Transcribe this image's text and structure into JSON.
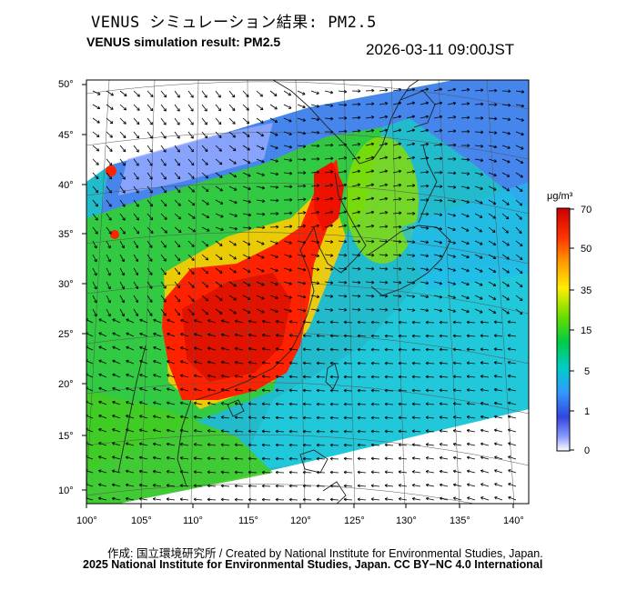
{
  "header": {
    "title_jp": "VENUS シミュレーション結果: PM2.5",
    "title_en": "VENUS simulation result: PM2.5",
    "timestamp": "2026-03-11 09:00JST"
  },
  "map": {
    "lon_ticks": [
      "100°",
      "105°",
      "110°",
      "115°",
      "120°",
      "125°",
      "130°",
      "135°",
      "140°"
    ],
    "lat_ticks": [
      "50°",
      "45°",
      "40°",
      "35°",
      "30°",
      "25°",
      "20°",
      "15°",
      "10°"
    ],
    "lon_range": [
      100,
      142
    ],
    "lat_range": [
      9,
      50
    ],
    "field": "PM2.5 concentration with wind vectors"
  },
  "colorbar": {
    "unit": "μg/m³",
    "labels": [
      "70",
      "50",
      "35",
      "15",
      "5",
      "1",
      "0"
    ],
    "colors": [
      "#cc0000",
      "#ff3300",
      "#ff9900",
      "#ffee00",
      "#66dd00",
      "#00cc44",
      "#00cccc",
      "#3399ff",
      "#3344dd",
      "#8899ff",
      "#ffffff"
    ]
  },
  "footer": {
    "credit_line": "作成: 国立環境研究所 / Created by National Institute for Environmental Studies, Japan.",
    "copyright_line": "2025 National Institute for Environmental Studies, Japan. CC BY−NC 4.0 International"
  }
}
